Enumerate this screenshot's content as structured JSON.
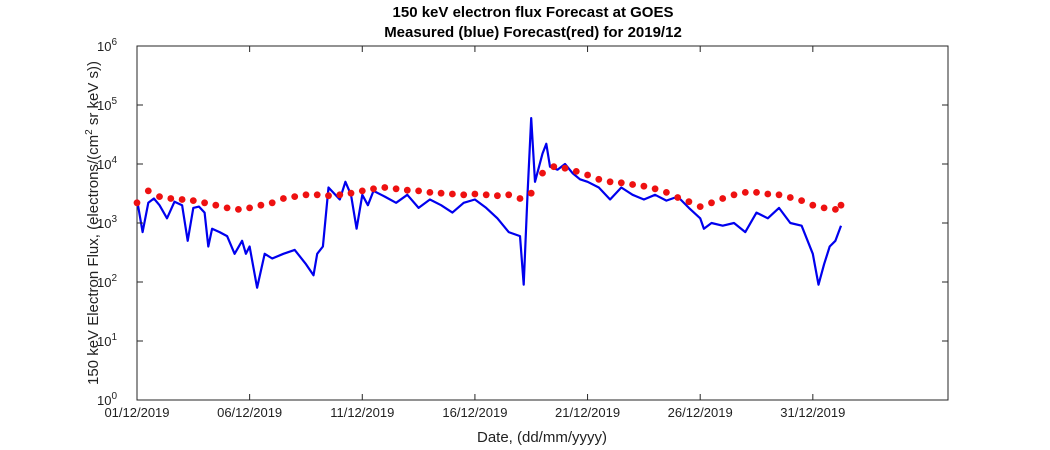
{
  "chart_data": {
    "type": "line",
    "title": "150 keV electron flux Forecast at GOES",
    "subtitle": "Measured (blue) Forecast(red) for 2019/12",
    "xlabel": "Date, (dd/mm/yyyy)",
    "ylabel_main": "150 keV Electron Flux, (electrons/(cm",
    "ylabel_sup": "2",
    "ylabel_tail": " sr keV s))",
    "xlim": [
      "2019-12-01",
      "2020-01-06"
    ],
    "ylim": [
      1,
      1000000
    ],
    "yscale": "log",
    "grid": false,
    "xticks": [
      {
        "date": "2019-12-01",
        "label": "01/12/2019"
      },
      {
        "date": "2019-12-06",
        "label": "06/12/2019"
      },
      {
        "date": "2019-12-11",
        "label": "11/12/2019"
      },
      {
        "date": "2019-12-16",
        "label": "16/12/2019"
      },
      {
        "date": "2019-12-21",
        "label": "21/12/2019"
      },
      {
        "date": "2019-12-26",
        "label": "26/12/2019"
      },
      {
        "date": "2019-12-31",
        "label": "31/12/2019"
      }
    ],
    "yticks": [
      {
        "value": 1,
        "base": "10",
        "exp": "0"
      },
      {
        "value": 10,
        "base": "10",
        "exp": "1"
      },
      {
        "value": 100,
        "base": "10",
        "exp": "2"
      },
      {
        "value": 1000,
        "base": "10",
        "exp": "3"
      },
      {
        "value": 10000,
        "base": "10",
        "exp": "4"
      },
      {
        "value": 100000,
        "base": "10",
        "exp": "5"
      },
      {
        "value": 1000000,
        "base": "10",
        "exp": "6"
      }
    ],
    "series": [
      {
        "color": "#0000ee",
        "style": "line",
        "x": [
          "2019-12-01T00:00",
          "2019-12-01T06:00",
          "2019-12-01T12:00",
          "2019-12-01T18:00",
          "2019-12-02T00:00",
          "2019-12-02T08:00",
          "2019-12-02T16:00",
          "2019-12-03T00:00",
          "2019-12-03T06:00",
          "2019-12-03T12:00",
          "2019-12-03T18:00",
          "2019-12-04T00:00",
          "2019-12-04T04:00",
          "2019-12-04T08:00",
          "2019-12-04T16:00",
          "2019-12-05T00:00",
          "2019-12-05T08:00",
          "2019-12-05T16:00",
          "2019-12-05T20:00",
          "2019-12-06T00:00",
          "2019-12-06T08:00",
          "2019-12-06T16:00",
          "2019-12-07T00:00",
          "2019-12-07T12:00",
          "2019-12-08T00:00",
          "2019-12-08T12:00",
          "2019-12-08T20:00",
          "2019-12-09T00:00",
          "2019-12-09T06:00",
          "2019-12-09T12:00",
          "2019-12-10T00:00",
          "2019-12-10T06:00",
          "2019-12-10T12:00",
          "2019-12-10T18:00",
          "2019-12-11T00:00",
          "2019-12-11T06:00",
          "2019-12-11T12:00",
          "2019-12-12T00:00",
          "2019-12-12T12:00",
          "2019-12-13T00:00",
          "2019-12-13T12:00",
          "2019-12-14T00:00",
          "2019-12-14T12:00",
          "2019-12-15T00:00",
          "2019-12-15T12:00",
          "2019-12-16T00:00",
          "2019-12-16T12:00",
          "2019-12-17T00:00",
          "2019-12-17T12:00",
          "2019-12-18T00:00",
          "2019-12-18T04:00",
          "2019-12-18T08:00",
          "2019-12-18T12:00",
          "2019-12-18T16:00",
          "2019-12-19T00:00",
          "2019-12-19T04:00",
          "2019-12-19T08:00",
          "2019-12-19T16:00",
          "2019-12-20T00:00",
          "2019-12-20T08:00",
          "2019-12-20T16:00",
          "2019-12-21T00:00",
          "2019-12-21T12:00",
          "2019-12-22T00:00",
          "2019-12-22T12:00",
          "2019-12-23T00:00",
          "2019-12-23T12:00",
          "2019-12-24T00:00",
          "2019-12-24T12:00",
          "2019-12-25T00:00",
          "2019-12-25T12:00",
          "2019-12-26T00:00",
          "2019-12-26T04:00",
          "2019-12-26T12:00",
          "2019-12-27T00:00",
          "2019-12-27T12:00",
          "2019-12-28T00:00",
          "2019-12-28T12:00",
          "2019-12-29T00:00",
          "2019-12-29T12:00",
          "2019-12-30T00:00",
          "2019-12-30T12:00",
          "2019-12-31T00:00",
          "2019-12-31T06:00",
          "2019-12-31T12:00",
          "2019-12-31T18:00",
          "2020-01-01T00:00",
          "2020-01-01T06:00"
        ],
        "y": [
          2500,
          700,
          2200,
          2600,
          2000,
          1200,
          2300,
          2000,
          500,
          1800,
          1900,
          1500,
          400,
          800,
          700,
          600,
          300,
          500,
          300,
          400,
          80,
          300,
          250,
          300,
          350,
          200,
          130,
          300,
          400,
          4000,
          2500,
          5000,
          3000,
          800,
          3000,
          2000,
          3500,
          2800,
          2200,
          3000,
          1800,
          2500,
          2000,
          1500,
          2200,
          2500,
          1800,
          1200,
          700,
          600,
          90,
          3000,
          60000,
          5000,
          15000,
          22000,
          9000,
          8000,
          10000,
          7000,
          5500,
          5000,
          4000,
          2500,
          4000,
          3000,
          2500,
          3000,
          2400,
          2800,
          1800,
          1200,
          800,
          1000,
          900,
          1000,
          700,
          1500,
          1200,
          1800,
          1000,
          900,
          300,
          90,
          200,
          400,
          500,
          900
        ]
      },
      {
        "color": "#ee1111",
        "style": "markers",
        "x": [
          "2019-12-01T00:00",
          "2019-12-01T12:00",
          "2019-12-02T00:00",
          "2019-12-02T12:00",
          "2019-12-03T00:00",
          "2019-12-03T12:00",
          "2019-12-04T00:00",
          "2019-12-04T12:00",
          "2019-12-05T00:00",
          "2019-12-05T12:00",
          "2019-12-06T00:00",
          "2019-12-06T12:00",
          "2019-12-07T00:00",
          "2019-12-07T12:00",
          "2019-12-08T00:00",
          "2019-12-08T12:00",
          "2019-12-09T00:00",
          "2019-12-09T12:00",
          "2019-12-10T00:00",
          "2019-12-10T12:00",
          "2019-12-11T00:00",
          "2019-12-11T12:00",
          "2019-12-12T00:00",
          "2019-12-12T12:00",
          "2019-12-13T00:00",
          "2019-12-13T12:00",
          "2019-12-14T00:00",
          "2019-12-14T12:00",
          "2019-12-15T00:00",
          "2019-12-15T12:00",
          "2019-12-16T00:00",
          "2019-12-16T12:00",
          "2019-12-17T00:00",
          "2019-12-17T12:00",
          "2019-12-18T00:00",
          "2019-12-18T12:00",
          "2019-12-19T00:00",
          "2019-12-19T12:00",
          "2019-12-20T00:00",
          "2019-12-20T12:00",
          "2019-12-21T00:00",
          "2019-12-21T12:00",
          "2019-12-22T00:00",
          "2019-12-22T12:00",
          "2019-12-23T00:00",
          "2019-12-23T12:00",
          "2019-12-24T00:00",
          "2019-12-24T12:00",
          "2019-12-25T00:00",
          "2019-12-25T12:00",
          "2019-12-26T00:00",
          "2019-12-26T12:00",
          "2019-12-27T00:00",
          "2019-12-27T12:00",
          "2019-12-28T00:00",
          "2019-12-28T12:00",
          "2019-12-29T00:00",
          "2019-12-29T12:00",
          "2019-12-30T00:00",
          "2019-12-30T12:00",
          "2019-12-31T00:00",
          "2019-12-31T12:00",
          "2020-01-01T00:00",
          "2020-01-01T06:00"
        ],
        "y": [
          2200,
          3500,
          2800,
          2600,
          2500,
          2400,
          2200,
          2000,
          1800,
          1700,
          1800,
          2000,
          2200,
          2600,
          2800,
          3000,
          3000,
          2900,
          3000,
          3200,
          3500,
          3800,
          4000,
          3800,
          3600,
          3500,
          3300,
          3200,
          3100,
          3000,
          3100,
          3000,
          2900,
          3000,
          2600,
          3200,
          7000,
          9000,
          8500,
          7500,
          6500,
          5500,
          5000,
          4800,
          4500,
          4200,
          3800,
          3300,
          2700,
          2300,
          1900,
          2200,
          2600,
          3000,
          3300,
          3300,
          3100,
          3000,
          2700,
          2400,
          2000,
          1800,
          1700,
          2000
        ]
      }
    ]
  }
}
